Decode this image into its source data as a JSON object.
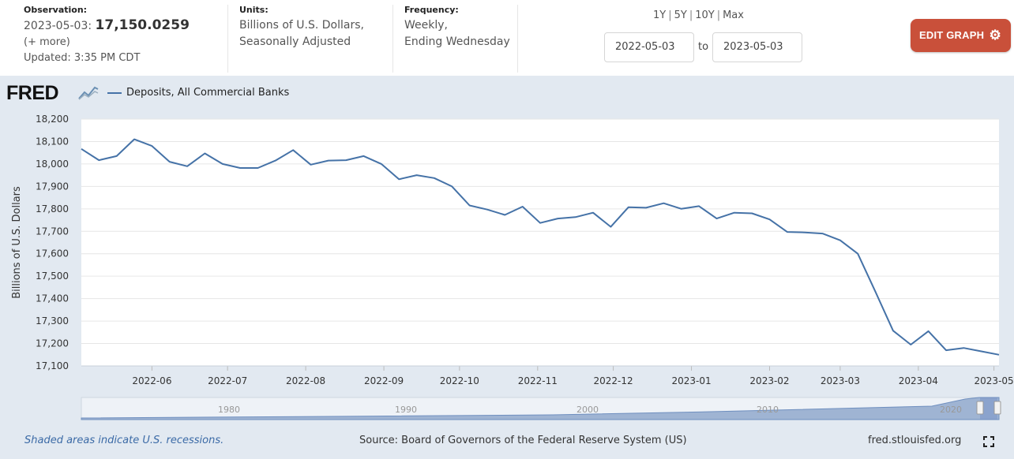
{
  "observation": {
    "heading": "Observation:",
    "date_label": "2023-05-03:",
    "value": "17,150.0259",
    "more": "(+ more)",
    "updated": "Updated: 3:35 PM CDT"
  },
  "units": {
    "heading": "Units:",
    "line1": "Billions of U.S. Dollars,",
    "line2": "Seasonally Adjusted"
  },
  "frequency": {
    "heading": "Frequency:",
    "line1": "Weekly,",
    "line2": "Ending Wednesday"
  },
  "range_links": [
    "1Y",
    "5Y",
    "10Y",
    "Max"
  ],
  "date_range": {
    "start": "2022-05-03",
    "to_word": "to",
    "end": "2023-05-03"
  },
  "edit_button": {
    "label": "EDIT GRAPH",
    "icon": "gear-icon"
  },
  "logo": {
    "text": "FRED"
  },
  "legend": {
    "series_name": "Deposits, All Commercial Banks"
  },
  "footer": {
    "recession_note": "Shaded areas indicate U.S. recessions.",
    "source": "Source: Board of Governors of the Federal Reserve System (US)",
    "site": "fred.stlouisfed.org"
  },
  "colors": {
    "line": "#4572a7",
    "button": "#c9503a",
    "panel": "#e2e9f1",
    "navigator_fill": "#9fb4d3"
  },
  "chart_data": {
    "type": "line",
    "ylabel": "Billions of U.S. Dollars",
    "ylim": [
      17100,
      18200
    ],
    "yticks": [
      17100,
      17200,
      17300,
      17400,
      17500,
      17600,
      17700,
      17800,
      17900,
      18000,
      18100,
      18200
    ],
    "ytick_labels": [
      "17,100",
      "17,200",
      "17,300",
      "17,400",
      "17,500",
      "17,600",
      "17,700",
      "17,800",
      "17,900",
      "18,000",
      "18,100",
      "18,200"
    ],
    "xlim": [
      "2022-05-04",
      "2023-05-03"
    ],
    "xticks": [
      "2022-06-01",
      "2022-07-01",
      "2022-08-01",
      "2022-09-01",
      "2022-10-01",
      "2022-11-01",
      "2022-12-01",
      "2023-01-01",
      "2023-02-01",
      "2023-03-01",
      "2023-04-01",
      "2023-05-01"
    ],
    "xtick_labels": [
      "2022-06",
      "2022-07",
      "2022-08",
      "2022-09",
      "2022-10",
      "2022-11",
      "2022-12",
      "2023-01",
      "2023-02",
      "2023-03",
      "2023-04",
      "2023-05"
    ],
    "grid": true,
    "legend_position": "top-left",
    "series": [
      {
        "name": "Deposits, All Commercial Banks",
        "x": [
          "2022-05-04",
          "2022-05-11",
          "2022-05-18",
          "2022-05-25",
          "2022-06-01",
          "2022-06-08",
          "2022-06-15",
          "2022-06-22",
          "2022-06-29",
          "2022-07-06",
          "2022-07-13",
          "2022-07-20",
          "2022-07-27",
          "2022-08-03",
          "2022-08-10",
          "2022-08-17",
          "2022-08-24",
          "2022-08-31",
          "2022-09-07",
          "2022-09-14",
          "2022-09-21",
          "2022-09-28",
          "2022-10-05",
          "2022-10-12",
          "2022-10-19",
          "2022-10-26",
          "2022-11-02",
          "2022-11-09",
          "2022-11-16",
          "2022-11-23",
          "2022-11-30",
          "2022-12-07",
          "2022-12-14",
          "2022-12-21",
          "2022-12-28",
          "2023-01-04",
          "2023-01-11",
          "2023-01-18",
          "2023-01-25",
          "2023-02-01",
          "2023-02-08",
          "2023-02-15",
          "2023-02-22",
          "2023-03-01",
          "2023-03-08",
          "2023-03-15",
          "2023-03-22",
          "2023-03-29",
          "2023-04-05",
          "2023-04-12",
          "2023-04-19",
          "2023-04-26",
          "2023-05-03"
        ],
        "values": [
          18067,
          18017,
          18035,
          18110,
          18080,
          18010,
          17990,
          18047,
          18000,
          17982,
          17982,
          18015,
          18062,
          17997,
          18015,
          18017,
          18035,
          18000,
          17932,
          17950,
          17937,
          17900,
          17815,
          17797,
          17773,
          17810,
          17737,
          17757,
          17763,
          17783,
          17720,
          17807,
          17805,
          17825,
          17800,
          17812,
          17757,
          17783,
          17780,
          17753,
          17697,
          17695,
          17690,
          17660,
          17600,
          17430,
          17257,
          17195,
          17255,
          17170,
          17180,
          17165,
          17150
        ]
      }
    ],
    "navigator": {
      "tick_labels": [
        "1980",
        "1990",
        "2000",
        "2010",
        "2020"
      ]
    }
  }
}
